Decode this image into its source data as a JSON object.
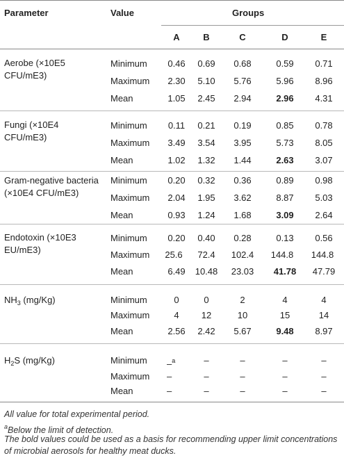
{
  "header": {
    "parameter": "Parameter",
    "value": "Value",
    "groups": "Groups",
    "group_labels": [
      "A",
      "B",
      "C",
      "D",
      "E"
    ]
  },
  "rows": [
    {
      "param_lines": [
        "Aerobe (×10E5",
        "CFU/mE3)"
      ],
      "stats": [
        {
          "label": "Minimum",
          "values": [
            "0.46",
            "0.69",
            "0.68",
            "0.59",
            "0.71"
          ]
        },
        {
          "label": "Maximum",
          "values": [
            "2.30",
            "5.10",
            "5.76",
            "5.96",
            "8.96"
          ]
        },
        {
          "label": "Mean",
          "values": [
            "1.05",
            "2.45",
            "2.94",
            "2.96",
            "4.31"
          ],
          "bold_index": 3
        }
      ]
    },
    {
      "param_lines": [
        "Fungi (×10E4",
        "CFU/mE3)"
      ],
      "stats": [
        {
          "label": "Minimum",
          "values": [
            "0.11",
            "0.21",
            "0.19",
            "0.85",
            "0.78"
          ]
        },
        {
          "label": "Maximum",
          "values": [
            "3.49",
            "3.54",
            "3.95",
            "5.73",
            "8.05"
          ]
        },
        {
          "label": "Mean",
          "values": [
            "1.02",
            "1.32",
            "1.44",
            "2.63",
            "3.07"
          ],
          "bold_index": 3
        }
      ]
    },
    {
      "param_lines": [
        "Gram-negative bacteria",
        "(×10E4 CFU/mE3)"
      ],
      "stats": [
        {
          "label": "Minimum",
          "values": [
            "0.20",
            "0.32",
            "0.36",
            "0.89",
            "0.98"
          ]
        },
        {
          "label": "Maximum",
          "values": [
            "2.04",
            "1.95",
            "3.62",
            "8.87",
            "5.03"
          ]
        },
        {
          "label": "Mean",
          "values": [
            "0.93",
            "1.24",
            "1.68",
            "3.09",
            "2.64"
          ],
          "bold_index": 3
        }
      ]
    },
    {
      "param_lines": [
        "Endotoxin (×10E3",
        "EU/mE3)"
      ],
      "stats": [
        {
          "label": "Minimum",
          "values": [
            "0.20",
            "0.40",
            "0.28",
            "0.13",
            "0.56"
          ]
        },
        {
          "label": "Maximum",
          "values": [
            "25.6",
            "72.4",
            "102.4",
            "144.8",
            "144.8"
          ]
        },
        {
          "label": "Mean",
          "values": [
            "6.49",
            "10.48",
            "23.03",
            "41.78",
            "47.79"
          ],
          "bold_index": 3
        }
      ]
    },
    {
      "param_base": "NH",
      "param_sub": "3",
      "param_unit": " (mg/Kg)",
      "stats": [
        {
          "label": "Minimum",
          "values": [
            "0",
            "0",
            "2",
            "4",
            "4"
          ]
        },
        {
          "label": "Maximum",
          "values": [
            "4",
            "12",
            "10",
            "15",
            "14"
          ]
        },
        {
          "label": "Mean",
          "values": [
            "2.56",
            "2.42",
            "5.67",
            "9.48",
            "8.97"
          ],
          "bold_index": 3
        }
      ]
    },
    {
      "param_base": "H",
      "param_sub": "2",
      "param_unit": "S (mg/Kg)",
      "stats": [
        {
          "label": "Minimum",
          "values": [
            "–",
            "–",
            "–",
            "–",
            "–"
          ],
          "first_sup": "a"
        },
        {
          "label": "Maximum",
          "values": [
            "–",
            "–",
            "–",
            "–",
            "–"
          ]
        },
        {
          "label": "Mean",
          "values": [
            "–",
            "–",
            "–",
            "–",
            "–"
          ]
        }
      ]
    }
  ],
  "footnotes": {
    "note1": "All value for total experimental period.",
    "note2_sup": "a",
    "note2": "Below the limit of detection.",
    "note3_line1": "The bold values could be used as a basis for recommending upper limit concentrations",
    "note3_line2": "of microbial aerosols for healthy meat ducks."
  }
}
